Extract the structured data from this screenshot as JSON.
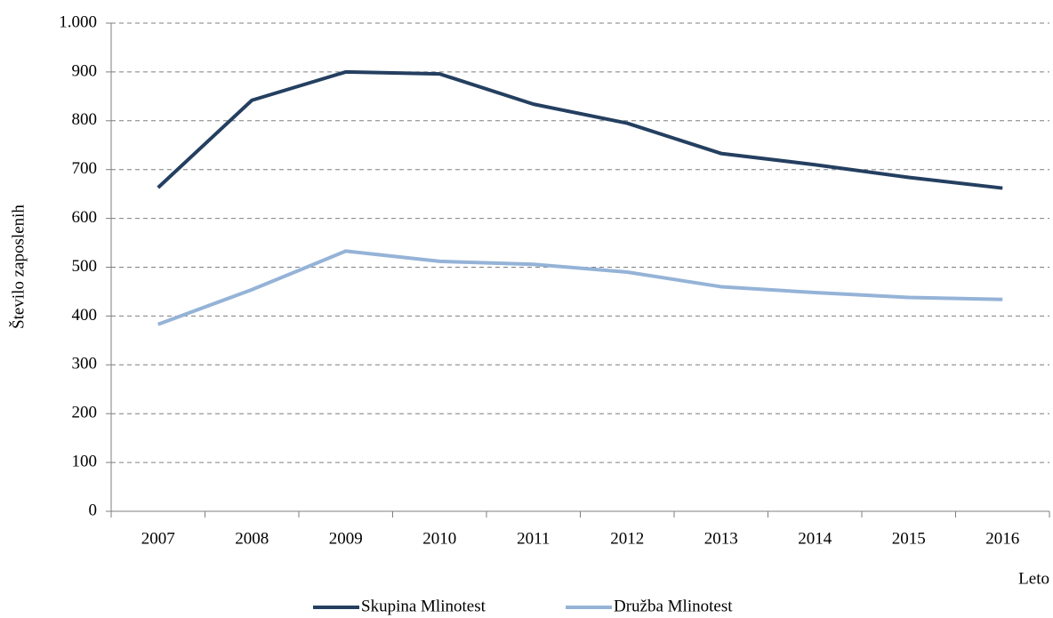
{
  "chart_data": {
    "type": "line",
    "y_label": "Število zaposlenih",
    "x_label": "Leto",
    "categories": [
      "2007",
      "2008",
      "2009",
      "2010",
      "2011",
      "2012",
      "2013",
      "2014",
      "2015",
      "2016"
    ],
    "series": [
      {
        "name": "Skupina Mlinotest",
        "color": "#243f60",
        "values": [
          663,
          842,
          900,
          896,
          834,
          795,
          733,
          710,
          684,
          662
        ]
      },
      {
        "name": "Družba Mlinotest",
        "color": "#95b3d7",
        "values": [
          383,
          454,
          533,
          512,
          506,
          490,
          460,
          448,
          438,
          434
        ]
      }
    ],
    "ylim": [
      0,
      1000
    ],
    "yticks": [
      0,
      100,
      200,
      300,
      400,
      500,
      600,
      700,
      800,
      900,
      {
        "value": 1000,
        "label": "1.000"
      }
    ],
    "grid": true,
    "legend": "bottom"
  }
}
